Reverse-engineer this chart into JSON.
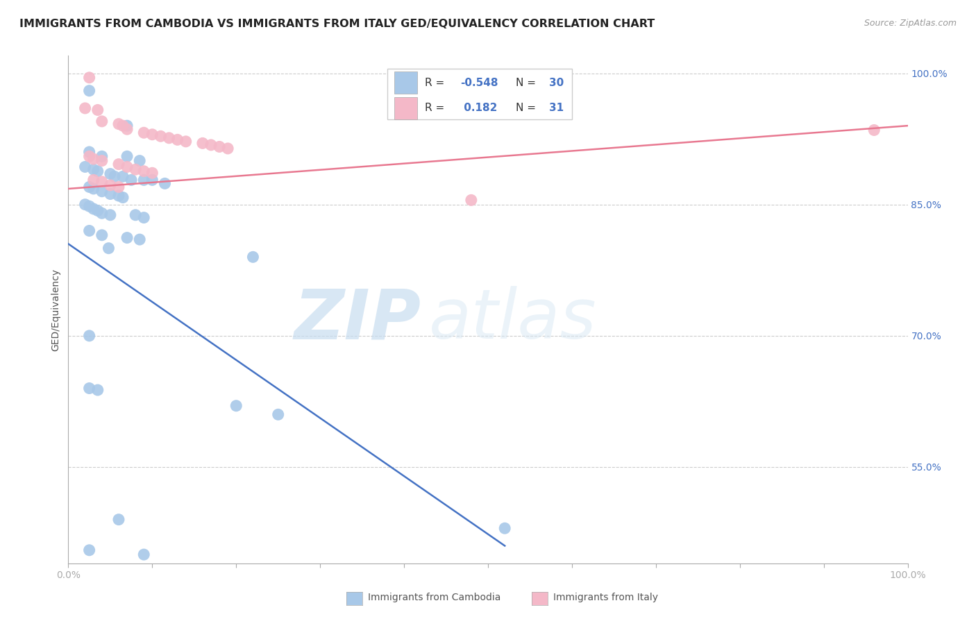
{
  "title": "IMMIGRANTS FROM CAMBODIA VS IMMIGRANTS FROM ITALY GED/EQUIVALENCY CORRELATION CHART",
  "source": "Source: ZipAtlas.com",
  "ylabel": "GED/Equivalency",
  "xlim": [
    0.0,
    1.0
  ],
  "ylim": [
    0.44,
    1.02
  ],
  "ytick_vals": [
    0.55,
    0.7,
    0.85,
    1.0
  ],
  "ytick_labels": [
    "55.0%",
    "70.0%",
    "85.0%",
    "100.0%"
  ],
  "xtick_vals": [
    0.0,
    0.1,
    0.2,
    0.3,
    0.4,
    0.5,
    0.6,
    0.7,
    0.8,
    0.9,
    1.0
  ],
  "watermark_zip": "ZIP",
  "watermark_atlas": "atlas",
  "cambodia_color": "#a8c8e8",
  "italy_color": "#f4b8c8",
  "cambodia_line_color": "#4472c4",
  "italy_line_color": "#e87890",
  "cambodia_line": [
    0.0,
    0.805,
    0.52,
    0.46
  ],
  "italy_line": [
    0.0,
    0.868,
    1.0,
    0.94
  ],
  "cambodia_scatter": [
    [
      0.025,
      0.98
    ],
    [
      0.07,
      0.94
    ],
    [
      0.025,
      0.91
    ],
    [
      0.04,
      0.905
    ],
    [
      0.07,
      0.905
    ],
    [
      0.085,
      0.9
    ],
    [
      0.02,
      0.893
    ],
    [
      0.03,
      0.89
    ],
    [
      0.035,
      0.888
    ],
    [
      0.05,
      0.885
    ],
    [
      0.055,
      0.882
    ],
    [
      0.065,
      0.882
    ],
    [
      0.075,
      0.878
    ],
    [
      0.09,
      0.878
    ],
    [
      0.1,
      0.878
    ],
    [
      0.115,
      0.874
    ],
    [
      0.025,
      0.87
    ],
    [
      0.03,
      0.868
    ],
    [
      0.04,
      0.865
    ],
    [
      0.05,
      0.862
    ],
    [
      0.06,
      0.86
    ],
    [
      0.065,
      0.858
    ],
    [
      0.02,
      0.85
    ],
    [
      0.025,
      0.848
    ],
    [
      0.03,
      0.845
    ],
    [
      0.035,
      0.843
    ],
    [
      0.04,
      0.84
    ],
    [
      0.05,
      0.838
    ],
    [
      0.08,
      0.838
    ],
    [
      0.09,
      0.835
    ],
    [
      0.025,
      0.82
    ],
    [
      0.04,
      0.815
    ],
    [
      0.07,
      0.812
    ],
    [
      0.085,
      0.81
    ],
    [
      0.048,
      0.8
    ],
    [
      0.22,
      0.79
    ],
    [
      0.025,
      0.7
    ],
    [
      0.025,
      0.64
    ],
    [
      0.035,
      0.638
    ],
    [
      0.2,
      0.62
    ],
    [
      0.25,
      0.61
    ],
    [
      0.06,
      0.49
    ],
    [
      0.52,
      0.48
    ],
    [
      0.025,
      0.455
    ],
    [
      0.09,
      0.45
    ]
  ],
  "italy_scatter": [
    [
      0.025,
      0.995
    ],
    [
      0.02,
      0.96
    ],
    [
      0.035,
      0.958
    ],
    [
      0.04,
      0.945
    ],
    [
      0.06,
      0.942
    ],
    [
      0.065,
      0.94
    ],
    [
      0.07,
      0.936
    ],
    [
      0.09,
      0.932
    ],
    [
      0.1,
      0.93
    ],
    [
      0.11,
      0.928
    ],
    [
      0.12,
      0.926
    ],
    [
      0.13,
      0.924
    ],
    [
      0.14,
      0.922
    ],
    [
      0.16,
      0.92
    ],
    [
      0.17,
      0.918
    ],
    [
      0.18,
      0.916
    ],
    [
      0.19,
      0.914
    ],
    [
      0.025,
      0.905
    ],
    [
      0.03,
      0.902
    ],
    [
      0.04,
      0.9
    ],
    [
      0.06,
      0.896
    ],
    [
      0.07,
      0.893
    ],
    [
      0.08,
      0.89
    ],
    [
      0.09,
      0.888
    ],
    [
      0.1,
      0.886
    ],
    [
      0.03,
      0.878
    ],
    [
      0.04,
      0.876
    ],
    [
      0.05,
      0.872
    ],
    [
      0.06,
      0.87
    ],
    [
      0.48,
      0.855
    ],
    [
      0.96,
      0.935
    ]
  ],
  "title_fontsize": 11.5,
  "source_fontsize": 9,
  "label_fontsize": 10,
  "tick_fontsize": 10
}
